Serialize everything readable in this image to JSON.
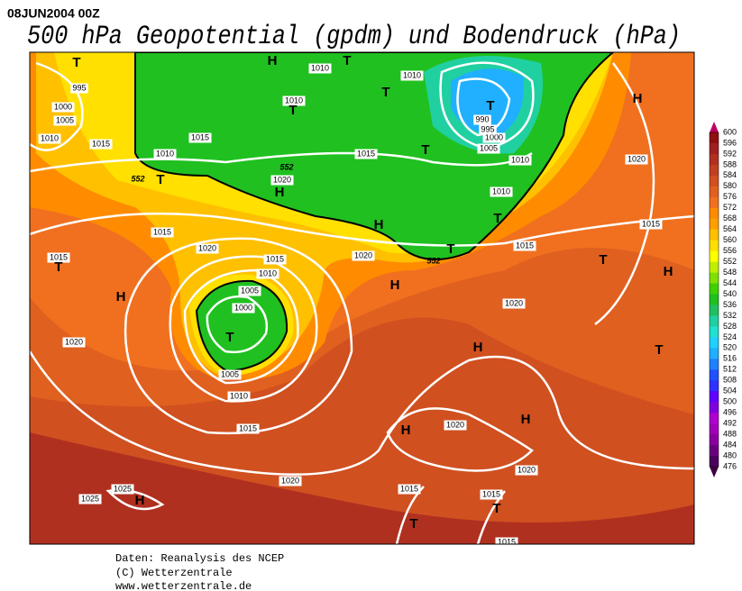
{
  "header": {
    "date": "08JUN2004 00Z",
    "title": "500 hPa Geopotential (gpdm) und Bodendruck (hPa)"
  },
  "legend": {
    "labels": [
      "600",
      "596",
      "592",
      "588",
      "584",
      "580",
      "576",
      "572",
      "568",
      "564",
      "560",
      "556",
      "552",
      "548",
      "544",
      "540",
      "536",
      "532",
      "528",
      "524",
      "520",
      "516",
      "512",
      "508",
      "504",
      "500",
      "496",
      "492",
      "488",
      "484",
      "480",
      "476"
    ],
    "colors": [
      "#901010",
      "#a02020",
      "#b03020",
      "#c04020",
      "#d05020",
      "#e06020",
      "#f07020",
      "#ff8c00",
      "#ffa000",
      "#ffc000",
      "#ffe000",
      "#ffff00",
      "#c0f000",
      "#80e000",
      "#40d000",
      "#20c020",
      "#20c060",
      "#20d0a0",
      "#20e0d0",
      "#20d0ff",
      "#20b0ff",
      "#2080ff",
      "#2050ff",
      "#3030ff",
      "#6000ff",
      "#8000e0",
      "#b000d0",
      "#a000b8",
      "#8a00a0",
      "#6a0080",
      "#4b0060"
    ]
  },
  "map": {
    "isobar_labels": [
      "995",
      "1000",
      "1005",
      "1010",
      "1015",
      "1010",
      "1015",
      "1010",
      "1010",
      "1010",
      "1015",
      "1020",
      "1015",
      "1020",
      "1015",
      "1020",
      "1010",
      "1005",
      "1000",
      "1005",
      "1010",
      "1015",
      "1020",
      "1015",
      "1020",
      "1025",
      "1025",
      "1015",
      "1015",
      "1020",
      "1020",
      "1020",
      "1015",
      "1010",
      "1010",
      "1005",
      "1000",
      "995",
      "990",
      "1020",
      "1015",
      "1015"
    ],
    "pressure_centers": [
      "T",
      "H",
      "T",
      "T",
      "T",
      "T",
      "T",
      "T",
      "H",
      "H",
      "T",
      "T",
      "H",
      "H",
      "T",
      "H",
      "T",
      "H",
      "H",
      "H",
      "T",
      "T",
      "H",
      "H",
      "T",
      "T"
    ],
    "contour_labels": [
      "552",
      "552",
      "552"
    ]
  },
  "footer": {
    "lines": [
      "Daten: Reanalysis des NCEP",
      "(C) Wetterzentrale",
      "www.wetterzentrale.de"
    ]
  }
}
